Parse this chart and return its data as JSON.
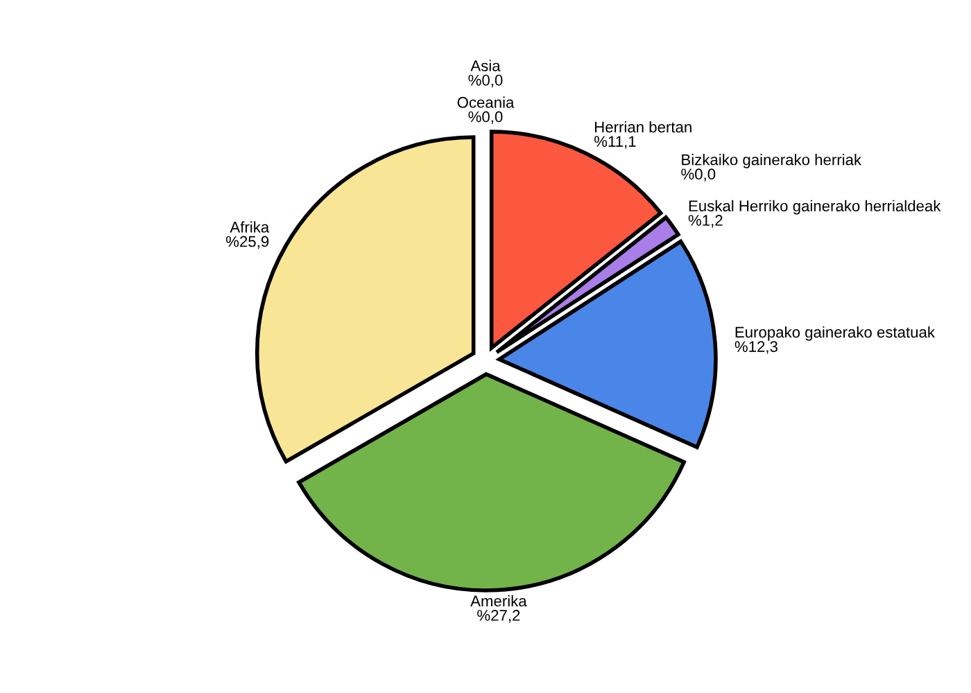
{
  "chart_data": {
    "type": "pie",
    "categories": [
      "Herrian bertan",
      "Bizkaiko gainerako herriak",
      "Euskal Herriko gainerako herrialdeak",
      "Europako gainerako estatuak",
      "Amerika",
      "Afrika",
      "Asia",
      "Oceania"
    ],
    "values": [
      11.1,
      0.0,
      1.2,
      12.3,
      27.2,
      25.9,
      0.0,
      0.0
    ],
    "value_labels": [
      "%11,1",
      "%0,0",
      "%1,2",
      "%12,3",
      "%27,2",
      "%25,9",
      "%0,0",
      "%0,0"
    ],
    "colors": [
      "#fc5840",
      "#e8a33c",
      "#a97ee8",
      "#4a86e8",
      "#72b34a",
      "#f9e596",
      "#9fc5e8",
      "#c27ba0"
    ]
  }
}
